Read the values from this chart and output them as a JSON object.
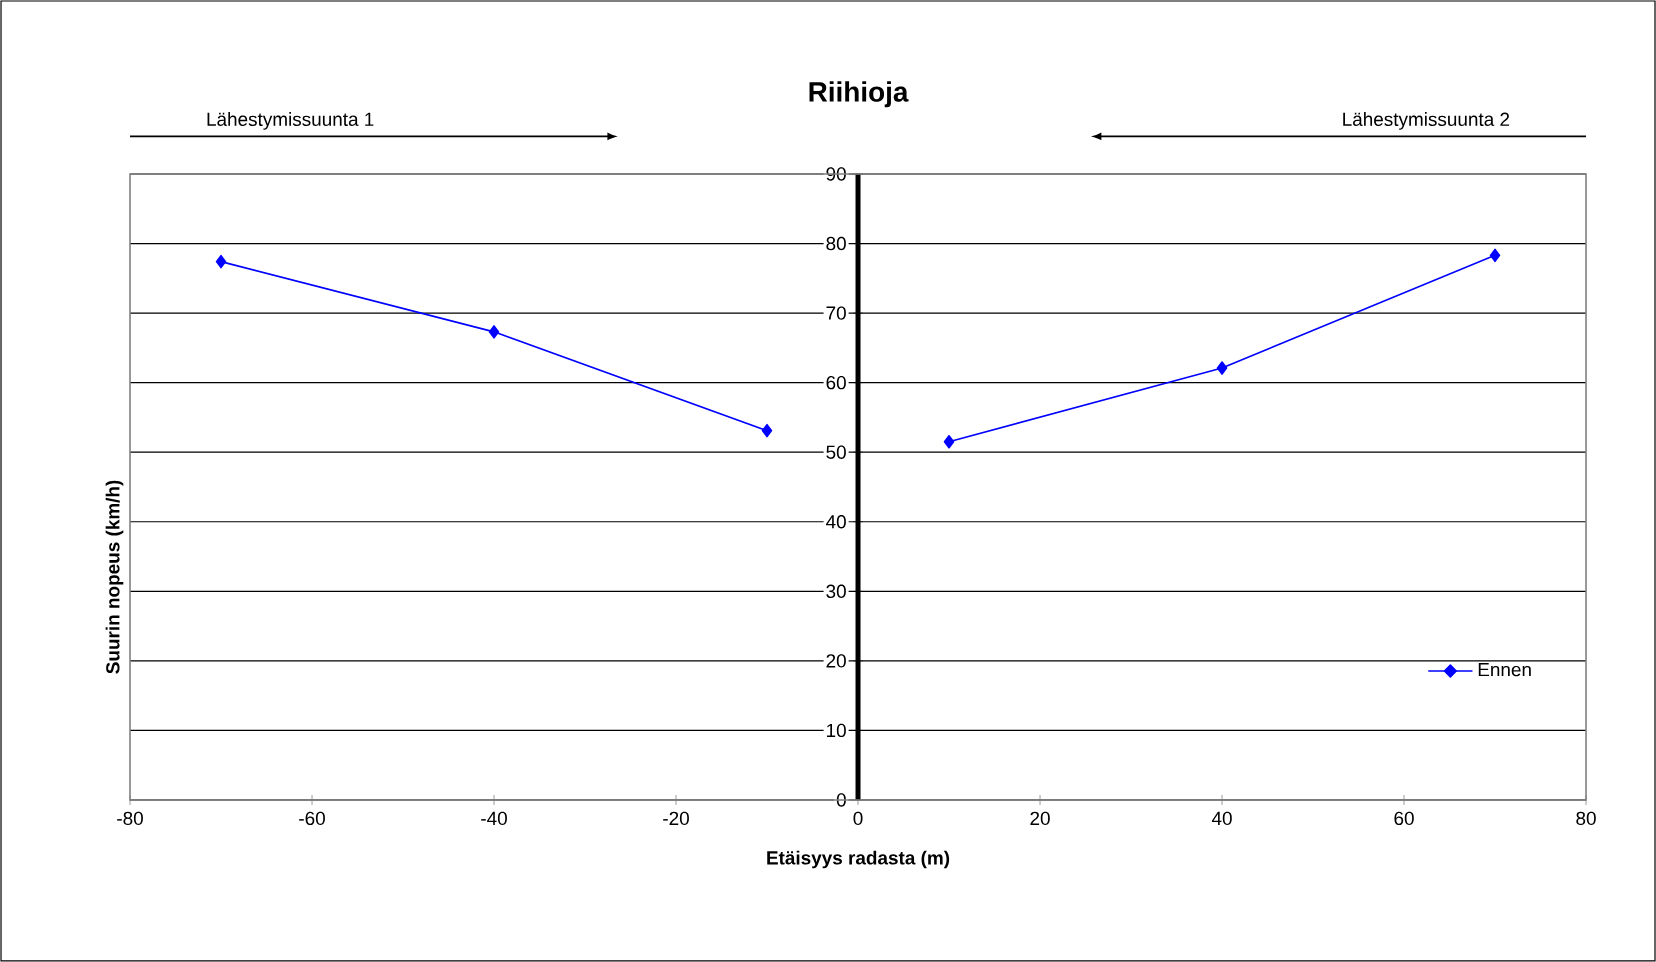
{
  "chart_data": {
    "type": "line",
    "title": "Riihioja",
    "xlabel": "Etäisyys radasta (m)",
    "ylabel": "Suurin nopeus (km/h)",
    "annotations": [
      "Lähestymissuunta 1",
      "Lähestymissuunta 2"
    ],
    "x": [
      -70,
      -40,
      -10,
      0,
      10,
      40,
      70
    ],
    "series": [
      {
        "name": "Ennen",
        "color": "#0000ff",
        "values": [
          77.4,
          67.3,
          53.1,
          null,
          51.5,
          62.1,
          78.3
        ]
      }
    ],
    "xlim": [
      -80,
      80
    ],
    "xticks": [
      -80,
      -60,
      -40,
      -20,
      0,
      20,
      40,
      60,
      80
    ],
    "ylim": [
      0,
      90
    ],
    "yticks": [
      0,
      10,
      20,
      30,
      40,
      50,
      60,
      70,
      80,
      90
    ],
    "grid": "y",
    "legend": "bottom right",
    "marker": "diamond",
    "line_style": "solid"
  }
}
